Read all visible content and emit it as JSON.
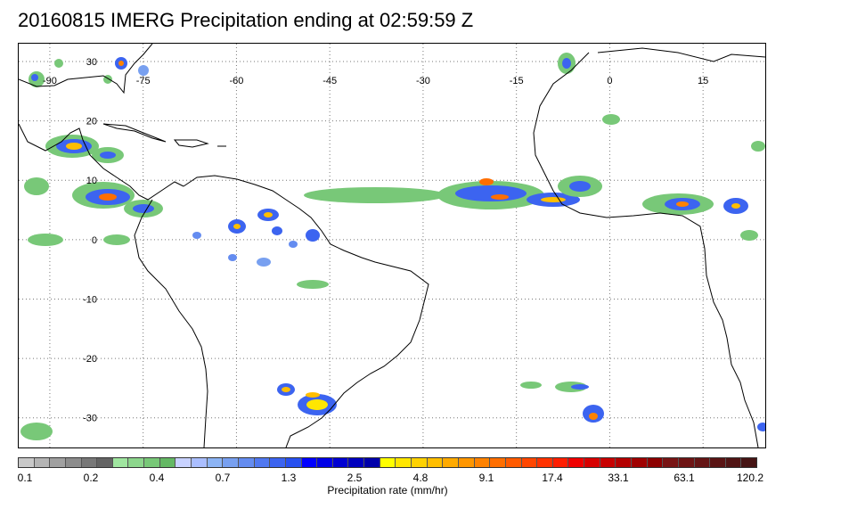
{
  "title": "20160815 IMERG Precipitation ending at 02:59:59 Z",
  "map": {
    "longitude_labels": [
      "-90",
      "-75",
      "-60",
      "-45",
      "-30",
      "-15",
      "0",
      "15"
    ],
    "latitude_labels": [
      "30",
      "20",
      "10",
      "0",
      "-10",
      "-20",
      "-30"
    ],
    "lon_range": [
      -95,
      25
    ],
    "lat_range": [
      -35,
      33
    ],
    "coastline_color": "#000000",
    "gridline_style": "dotted"
  },
  "colorbar": {
    "title": "Precipitation rate (mm/hr)",
    "tick_labels": [
      "0.1",
      "0.2",
      "0.4",
      "0.7",
      "1.3",
      "2.5",
      "4.8",
      "9.1",
      "17.4",
      "33.1",
      "63.1",
      "120.2"
    ],
    "colors": [
      "#c8c8c8",
      "#b4b4b4",
      "#a0a0a0",
      "#8c8c8c",
      "#787878",
      "#646464",
      "#a0e6a0",
      "#8cd68c",
      "#78c878",
      "#64b864",
      "#c8d2ff",
      "#aabeff",
      "#8cb4f5",
      "#78a0f0",
      "#648cf0",
      "#5078f0",
      "#3c64f0",
      "#2850f0",
      "#0000ff",
      "#0000e6",
      "#0000d2",
      "#0000be",
      "#0000aa",
      "#ffff00",
      "#ffe600",
      "#ffd200",
      "#ffbe00",
      "#ffaa00",
      "#ff9600",
      "#ff8200",
      "#ff6e00",
      "#ff5a00",
      "#ff4600",
      "#ff3200",
      "#ff1e00",
      "#f00000",
      "#d70000",
      "#c80000",
      "#b40000",
      "#a00000",
      "#8c0000",
      "#781414",
      "#6e1414",
      "#641414",
      "#5a1414",
      "#501414",
      "#461414"
    ]
  }
}
